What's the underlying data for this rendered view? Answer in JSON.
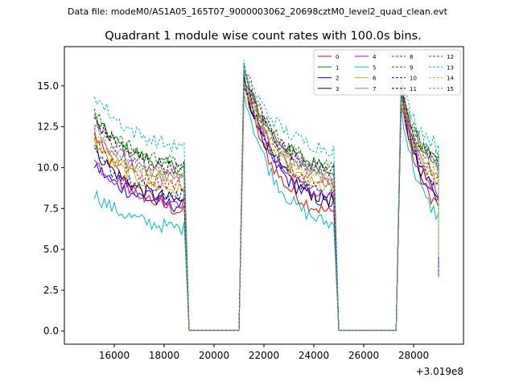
{
  "header": {
    "data_file": "Data file: modeM0/AS1A05_165T07_9000003062_20698cztM0_level2_quad_clean.evt"
  },
  "chart_data": {
    "type": "line",
    "title": "Quadrant 1 module wise count rates with 100.0s bins.",
    "xlabel": "",
    "ylabel": "",
    "x_offset_label": "+3.019e8",
    "xlim": [
      14000,
      30000
    ],
    "ylim": [
      -0.8,
      17.4
    ],
    "xticks": [
      16000,
      18000,
      20000,
      22000,
      24000,
      26000,
      28000
    ],
    "yticks": [
      0.0,
      2.5,
      5.0,
      7.5,
      10.0,
      12.5,
      15.0
    ],
    "x_tick_labels": [
      "16000",
      "18000",
      "20000",
      "22000",
      "24000",
      "26000",
      "28000"
    ],
    "y_tick_labels": [
      "0.0",
      "2.5",
      "5.0",
      "7.5",
      "10.0",
      "12.5",
      "15.0"
    ],
    "grid": false,
    "legend_position": "top-right",
    "segments": [
      {
        "start": 15200,
        "end": 18800
      },
      {
        "start": 21200,
        "end": 24800
      },
      {
        "start": 27500,
        "end": 29000
      }
    ],
    "gaps": [
      {
        "from": 19000,
        "to": 21000
      },
      {
        "from": 25000,
        "to": 27300
      }
    ],
    "series": [
      {
        "name": "0",
        "color": "#ff0000",
        "dash": "solid",
        "start": 12.0,
        "end": 6.7,
        "peak": 15.2
      },
      {
        "name": "1",
        "color": "#008000",
        "dash": "solid",
        "start": 13.0,
        "end": 9.6,
        "peak": 15.8
      },
      {
        "name": "2",
        "color": "#0000ff",
        "dash": "solid",
        "start": 10.2,
        "end": 7.3,
        "peak": 15.3
      },
      {
        "name": "3",
        "color": "#000000",
        "dash": "solid",
        "start": 11.2,
        "end": 7.5,
        "peak": 15.5
      },
      {
        "name": "4",
        "color": "#bf00bf",
        "dash": "solid",
        "start": 10.4,
        "end": 7.6,
        "peak": 15.6
      },
      {
        "name": "5",
        "color": "#00bfbf",
        "dash": "solid",
        "start": 8.4,
        "end": 6.0,
        "peak": 14.8
      },
      {
        "name": "6",
        "color": "#bfbf00",
        "dash": "solid",
        "start": 11.5,
        "end": 8.2,
        "peak": 15.4
      },
      {
        "name": "7",
        "color": "#808080",
        "dash": "solid",
        "start": 12.2,
        "end": 8.8,
        "peak": 15.6
      },
      {
        "name": "8",
        "color": "#ff0000",
        "dash": "dashed",
        "start": 11.8,
        "end": 8.5,
        "peak": 15.5
      },
      {
        "name": "9",
        "color": "#008000",
        "dash": "dashed",
        "start": 13.3,
        "end": 9.8,
        "peak": 15.9
      },
      {
        "name": "10",
        "color": "#0000ff",
        "dash": "dashed",
        "start": 10.8,
        "end": 7.9,
        "peak": 15.4
      },
      {
        "name": "11",
        "color": "#000000",
        "dash": "dashed",
        "start": 13.0,
        "end": 9.5,
        "peak": 15.7
      },
      {
        "name": "12",
        "color": "#bf00bf",
        "dash": "dashed",
        "start": 12.7,
        "end": 9.2,
        "peak": 16.4
      },
      {
        "name": "13",
        "color": "#00bfbf",
        "dash": "dashed",
        "start": 14.5,
        "end": 10.8,
        "peak": 16.2
      },
      {
        "name": "14",
        "color": "#bfbf00",
        "dash": "dashed",
        "start": 12.0,
        "end": 9.0,
        "peak": 15.3
      },
      {
        "name": "15",
        "color": "#808080",
        "dash": "dashed",
        "start": 12.4,
        "end": 9.0,
        "peak": 15.7
      }
    ]
  }
}
